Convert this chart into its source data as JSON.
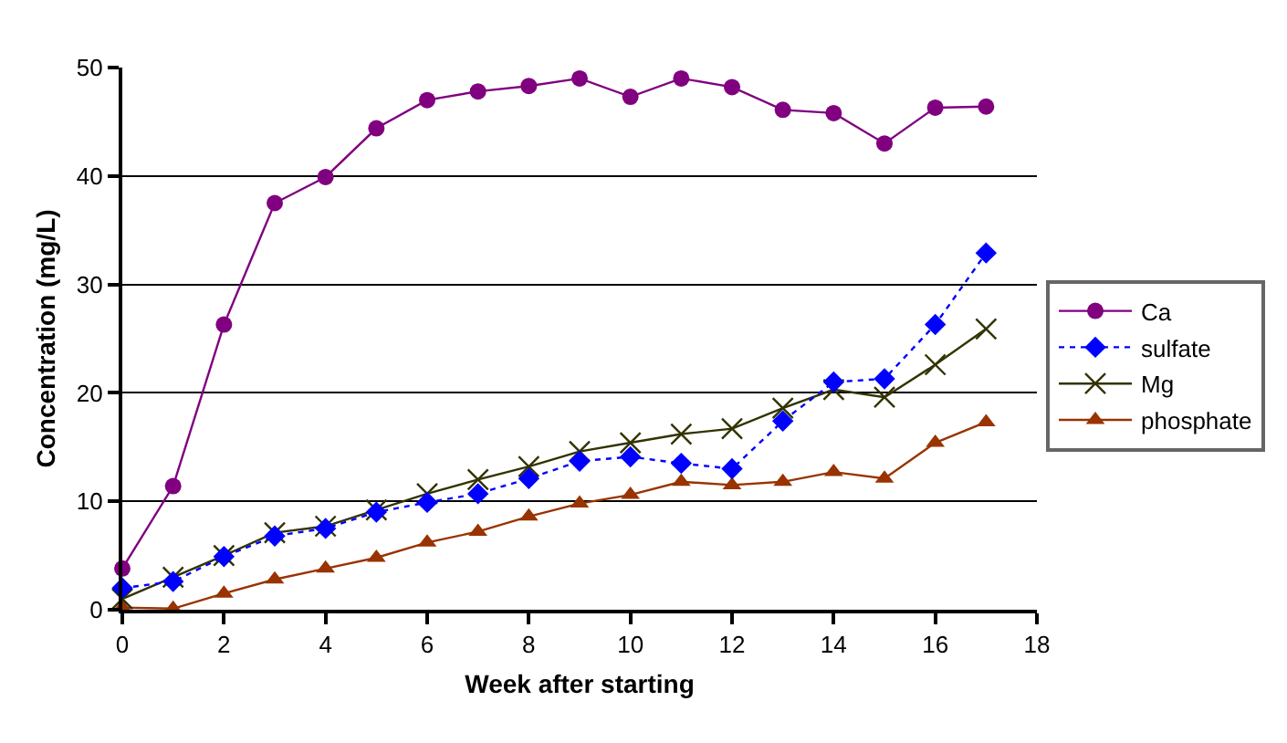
{
  "chart_data": {
    "type": "line",
    "xlabel": "Week after starting",
    "ylabel": "Concentration (mg/L)",
    "x": [
      0,
      1,
      2,
      3,
      4,
      5,
      6,
      7,
      8,
      9,
      10,
      11,
      12,
      13,
      14,
      15,
      16,
      17
    ],
    "xlim": [
      0,
      18
    ],
    "xticks": [
      0,
      2,
      4,
      6,
      8,
      10,
      12,
      14,
      16,
      18
    ],
    "ylim": [
      0,
      50
    ],
    "yticks": [
      0,
      10,
      20,
      30,
      40,
      50
    ],
    "grid": "y",
    "legend": "right",
    "series": [
      {
        "name": "Ca",
        "color": "#800080",
        "marker": "circle",
        "line_style": "solid",
        "values": [
          3.8,
          11.4,
          26.3,
          37.5,
          39.9,
          44.4,
          47.0,
          47.8,
          48.3,
          49.0,
          47.3,
          49.0,
          48.2,
          46.1,
          45.8,
          43.0,
          46.3,
          46.4
        ]
      },
      {
        "name": "sulfate",
        "color": "#0000ff",
        "marker": "diamond",
        "line_style": "dotted",
        "values": [
          2.0,
          2.6,
          4.9,
          6.8,
          7.5,
          9.0,
          9.9,
          10.7,
          12.1,
          13.7,
          14.1,
          13.5,
          13.0,
          17.4,
          21.0,
          21.3,
          26.3,
          32.9
        ]
      },
      {
        "name": "Mg",
        "color": "#333300",
        "marker": "cross",
        "line_style": "solid",
        "values": [
          1.0,
          3.0,
          5.0,
          7.1,
          7.7,
          9.2,
          10.7,
          12.0,
          13.2,
          14.6,
          15.4,
          16.2,
          16.7,
          18.6,
          20.3,
          19.6,
          22.6,
          25.9
        ]
      },
      {
        "name": "phosphate",
        "color": "#993300",
        "marker": "triangle",
        "line_style": "solid",
        "values": [
          0.2,
          0.1,
          1.5,
          2.8,
          3.8,
          4.8,
          6.2,
          7.2,
          8.6,
          9.8,
          10.6,
          11.8,
          11.5,
          11.8,
          12.7,
          12.1,
          15.4,
          17.3
        ]
      }
    ]
  }
}
